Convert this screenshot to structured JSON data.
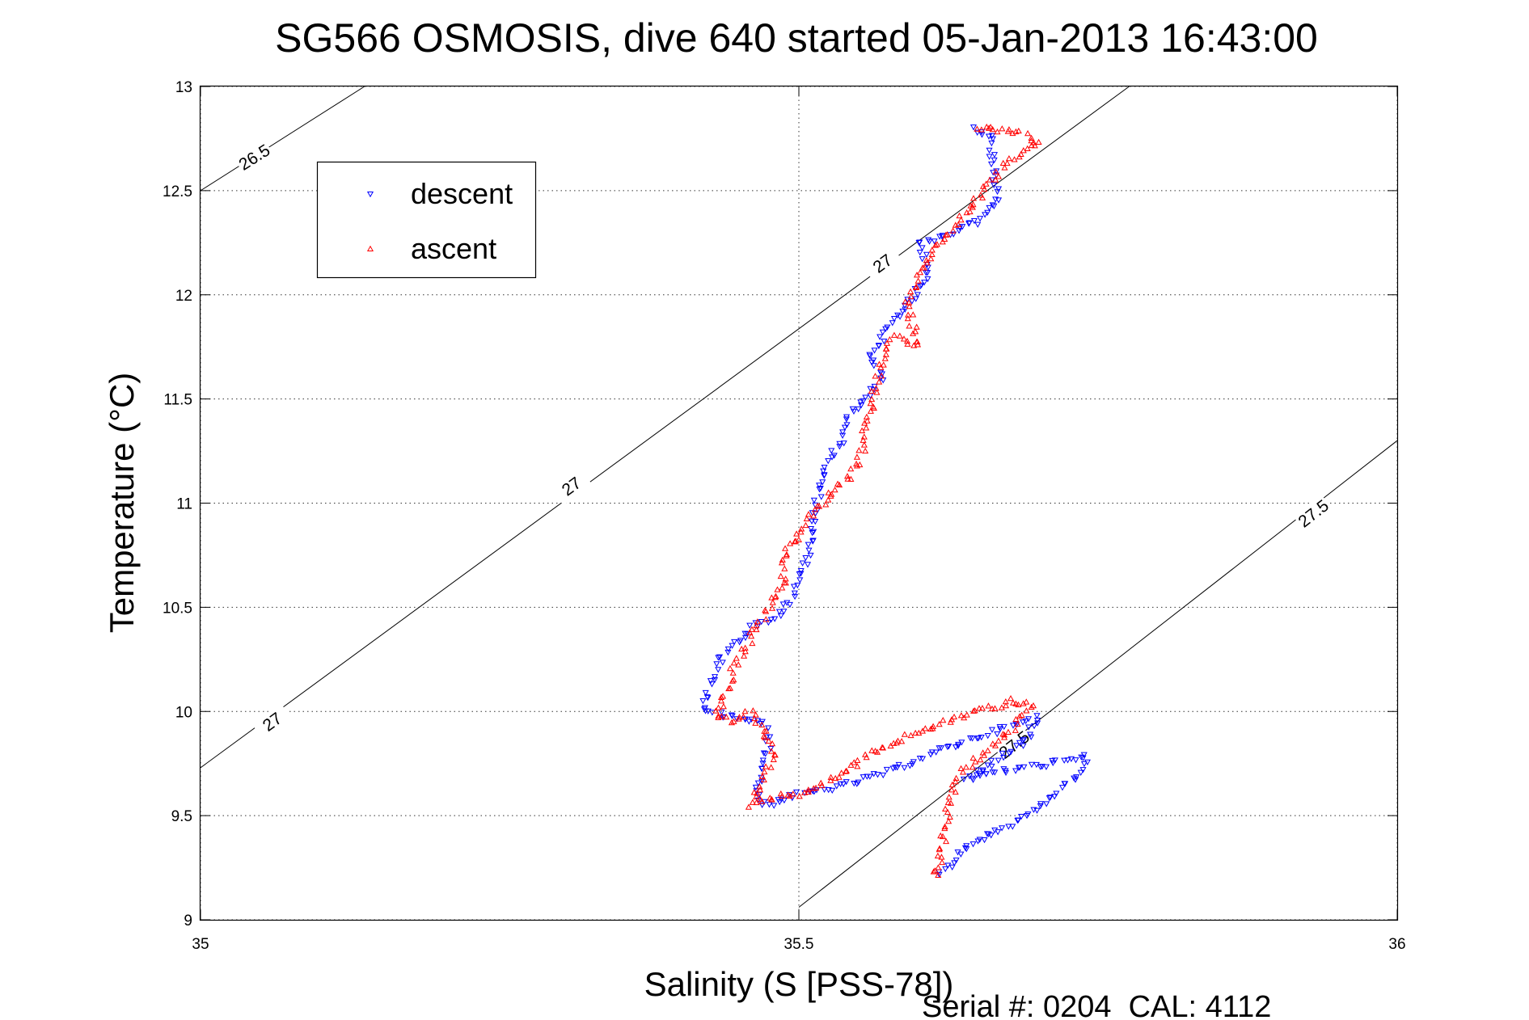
{
  "chart_data": {
    "type": "scatter",
    "title": "SG566 OSMOSIS, dive 640 started 05-Jan-2013 16:43:00",
    "xlabel": "Salinity (S [PSS-78])",
    "ylabel": "Temperature (°C)",
    "xlim": [
      35,
      36
    ],
    "ylim": [
      9,
      13
    ],
    "x_ticks": [
      35,
      35.5,
      36
    ],
    "x_tick_labels": [
      "35",
      "35.5",
      "36"
    ],
    "y_ticks": [
      9,
      9.5,
      10,
      10.5,
      11,
      11.5,
      12,
      12.5,
      13
    ],
    "y_tick_labels": [
      "9",
      "9.5",
      "10",
      "10.5",
      "11",
      "11.5",
      "12",
      "12.5",
      "13"
    ],
    "grid": true,
    "legend_position": "top-left",
    "footer": "Serial #: 0204  CAL: 4112",
    "density_contours": [
      {
        "label": "26.5",
        "points": [
          [
            35.0,
            12.5
          ],
          [
            35.137,
            13.0
          ]
        ],
        "label_at": [
          [
            35.045,
            12.66
          ]
        ]
      },
      {
        "label": "27",
        "points": [
          [
            35.0,
            9.73
          ],
          [
            35.776,
            13.0
          ]
        ],
        "label_at": [
          [
            35.06,
            9.95
          ],
          [
            35.31,
            11.08
          ],
          [
            35.57,
            12.15
          ]
        ]
      },
      {
        "label": "27.5",
        "points": [
          [
            35.5,
            9.06
          ],
          [
            36.0,
            11.3
          ]
        ],
        "label_at": [
          [
            35.68,
            9.84
          ],
          [
            35.93,
            10.95
          ]
        ]
      }
    ],
    "series": [
      {
        "name": "descent",
        "marker": "triangle-down",
        "color": "#0000ff",
        "path": [
          [
            35.645,
            12.8
          ],
          [
            35.655,
            12.78
          ],
          [
            35.66,
            12.76
          ],
          [
            35.665,
            12.45
          ],
          [
            35.65,
            12.35
          ],
          [
            35.62,
            12.28
          ],
          [
            35.6,
            12.25
          ],
          [
            35.61,
            12.1
          ],
          [
            35.59,
            11.95
          ],
          [
            35.575,
            11.85
          ],
          [
            35.56,
            11.7
          ],
          [
            35.57,
            11.6
          ],
          [
            35.555,
            11.5
          ],
          [
            35.54,
            11.4
          ],
          [
            35.535,
            11.3
          ],
          [
            35.52,
            11.15
          ],
          [
            35.515,
            11.0
          ],
          [
            35.51,
            10.85
          ],
          [
            35.51,
            10.75
          ],
          [
            35.5,
            10.65
          ],
          [
            35.495,
            10.55
          ],
          [
            35.48,
            10.45
          ],
          [
            35.46,
            10.4
          ],
          [
            35.44,
            10.3
          ],
          [
            35.43,
            10.2
          ],
          [
            35.425,
            10.1
          ],
          [
            35.42,
            10.0
          ],
          [
            35.44,
            9.98
          ],
          [
            35.47,
            9.95
          ],
          [
            35.475,
            9.85
          ],
          [
            35.47,
            9.75
          ],
          [
            35.465,
            9.6
          ],
          [
            35.47,
            9.55
          ],
          [
            35.5,
            9.6
          ],
          [
            35.54,
            9.65
          ],
          [
            35.58,
            9.72
          ],
          [
            35.62,
            9.82
          ],
          [
            35.66,
            9.9
          ],
          [
            35.7,
            9.97
          ],
          [
            35.69,
            9.87
          ],
          [
            35.66,
            9.75
          ],
          [
            35.64,
            9.68
          ],
          [
            35.675,
            9.72
          ],
          [
            35.71,
            9.75
          ],
          [
            35.74,
            9.78
          ],
          [
            35.73,
            9.68
          ],
          [
            35.705,
            9.55
          ],
          [
            35.675,
            9.45
          ],
          [
            35.64,
            9.35
          ],
          [
            35.62,
            9.22
          ],
          [
            35.615,
            9.2
          ]
        ]
      },
      {
        "name": "ascent",
        "marker": "triangle-up",
        "color": "#ff0000",
        "path": [
          [
            35.615,
            9.2
          ],
          [
            35.62,
            9.35
          ],
          [
            35.625,
            9.55
          ],
          [
            35.63,
            9.65
          ],
          [
            35.635,
            9.7
          ],
          [
            35.65,
            9.78
          ],
          [
            35.68,
            9.92
          ],
          [
            35.695,
            10.03
          ],
          [
            35.68,
            10.05
          ],
          [
            35.66,
            10.02
          ],
          [
            35.63,
            9.97
          ],
          [
            35.6,
            9.9
          ],
          [
            35.56,
            9.8
          ],
          [
            35.53,
            9.68
          ],
          [
            35.5,
            9.6
          ],
          [
            35.47,
            9.58
          ],
          [
            35.46,
            9.55
          ],
          [
            35.47,
            9.65
          ],
          [
            35.48,
            9.8
          ],
          [
            35.47,
            9.9
          ],
          [
            35.46,
            10.0
          ],
          [
            35.445,
            9.95
          ],
          [
            35.43,
            9.98
          ],
          [
            35.44,
            10.1
          ],
          [
            35.445,
            10.2
          ],
          [
            35.455,
            10.3
          ],
          [
            35.47,
            10.45
          ],
          [
            35.48,
            10.55
          ],
          [
            35.49,
            10.62
          ],
          [
            35.485,
            10.7
          ],
          [
            35.49,
            10.78
          ],
          [
            35.5,
            10.85
          ],
          [
            35.51,
            10.95
          ],
          [
            35.53,
            11.05
          ],
          [
            35.55,
            11.18
          ],
          [
            35.555,
            11.32
          ],
          [
            35.56,
            11.45
          ],
          [
            35.565,
            11.58
          ],
          [
            35.57,
            11.72
          ],
          [
            35.58,
            11.8
          ],
          [
            35.6,
            11.75
          ],
          [
            35.59,
            11.95
          ],
          [
            35.6,
            12.1
          ],
          [
            35.61,
            12.2
          ],
          [
            35.625,
            12.3
          ],
          [
            35.64,
            12.4
          ],
          [
            35.655,
            12.5
          ],
          [
            35.675,
            12.65
          ],
          [
            35.7,
            12.73
          ],
          [
            35.69,
            12.77
          ],
          [
            35.66,
            12.8
          ],
          [
            35.645,
            12.78
          ]
        ]
      }
    ]
  }
}
